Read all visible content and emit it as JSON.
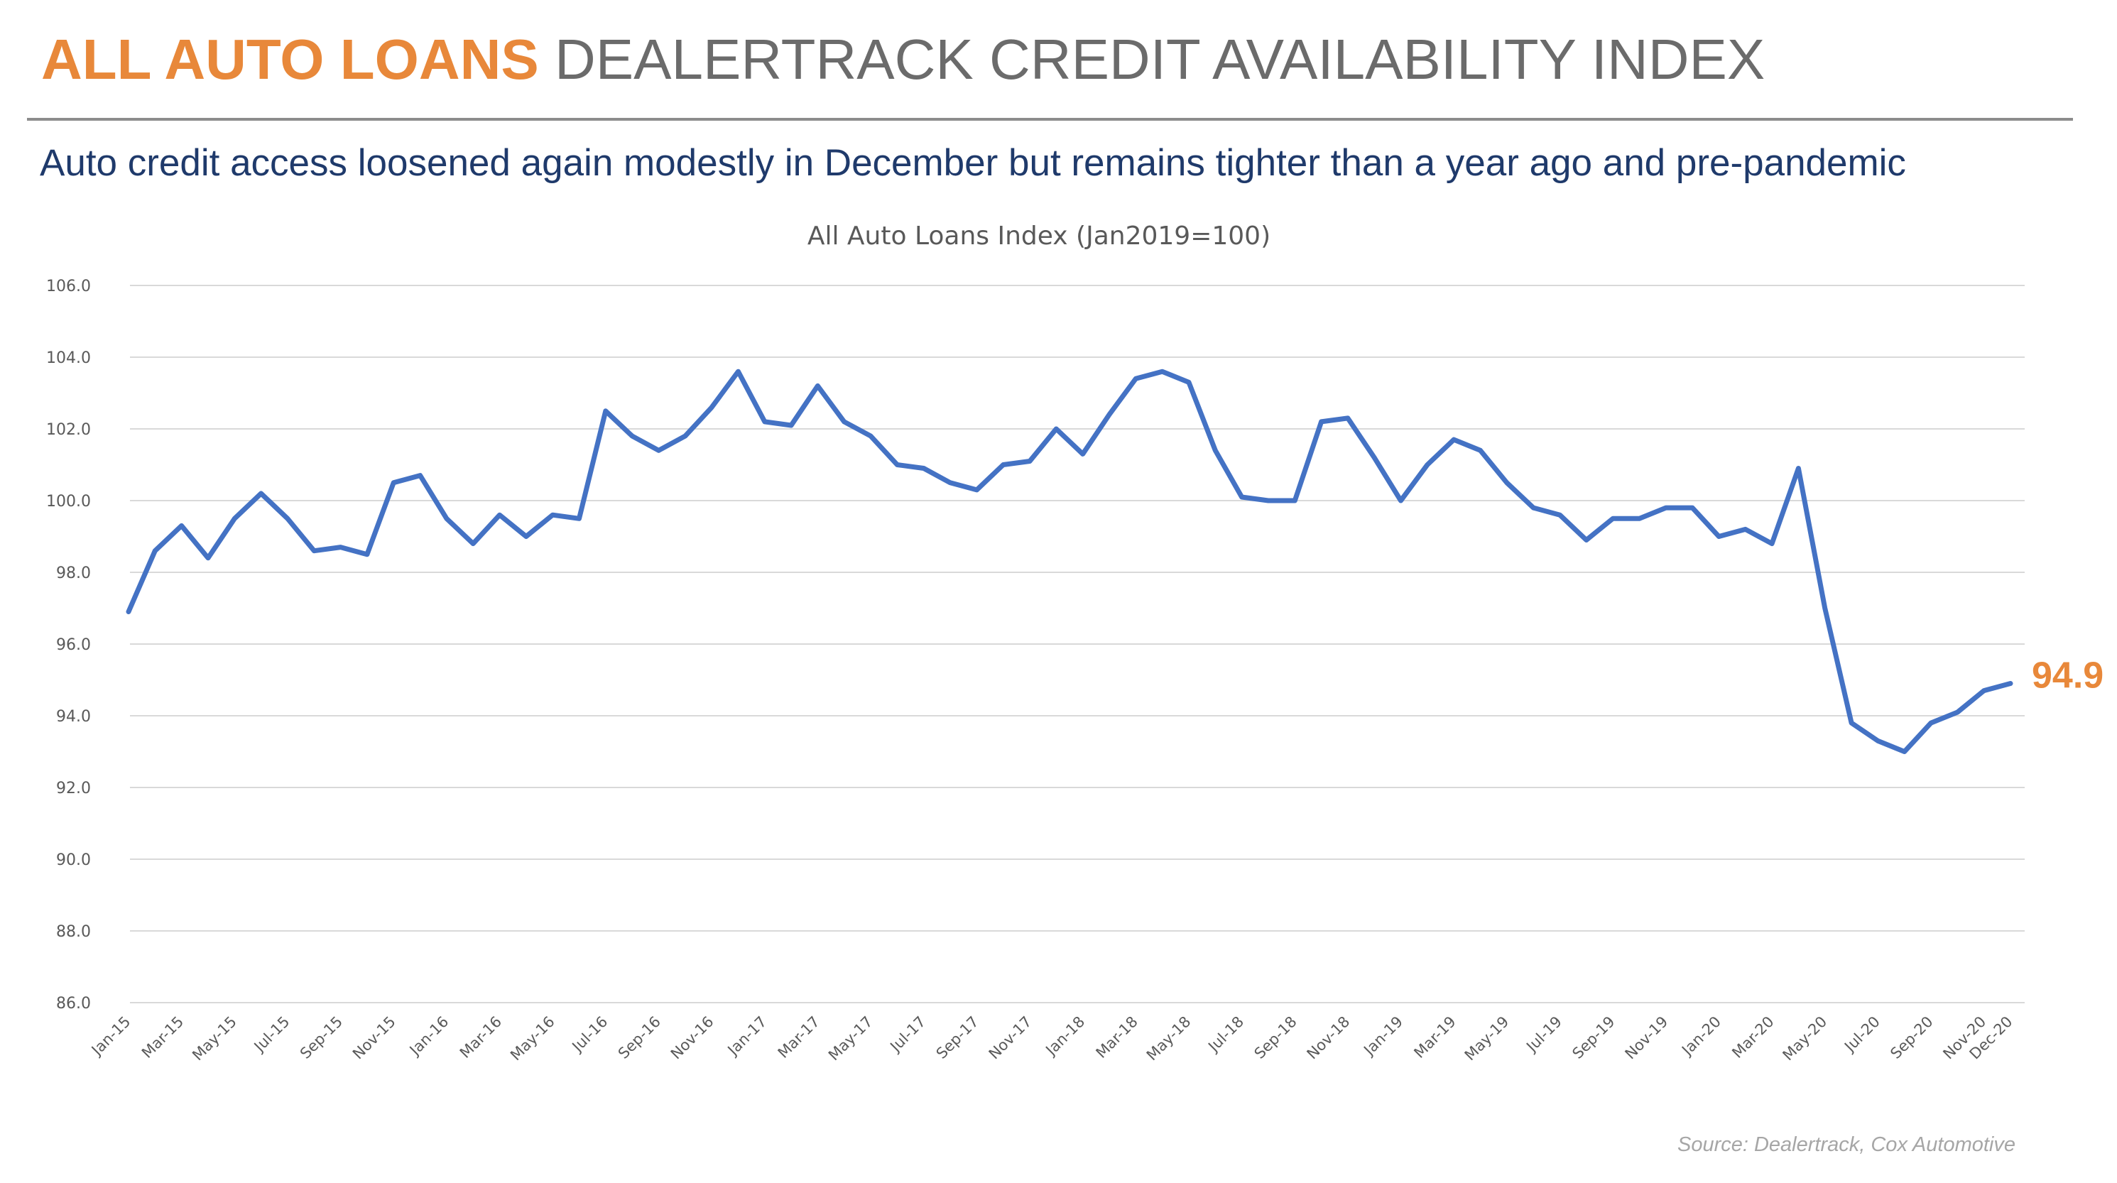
{
  "header": {
    "title_accent": "ALL AUTO LOANS",
    "title_rest": "DEALERTRACK CREDIT AVAILABILITY INDEX",
    "subtitle": "Auto credit access loosened again modestly in December but remains tighter than a year ago and pre-pandemic"
  },
  "footer": {
    "source": "Source: Dealertrack, Cox Automotive"
  },
  "colors": {
    "accent": "#E8883A",
    "title_gray": "#6B6B6B",
    "subtitle_navy": "#1F3A6B",
    "line": "#4472C4",
    "grid": "#D9D9D9",
    "rule": "#8C8C8C",
    "axis_text": "#595959",
    "source_gray": "#A6A6A6"
  },
  "chart_data": {
    "type": "line",
    "title": "All Auto Loans Index (Jan2019=100)",
    "xlabel": "",
    "ylabel": "",
    "ylim": [
      86,
      106
    ],
    "ytick_step": 2,
    "ytick_labels": [
      "86.0",
      "88.0",
      "90.0",
      "92.0",
      "94.0",
      "96.0",
      "98.0",
      "100.0",
      "102.0",
      "104.0",
      "106.0"
    ],
    "grid": true,
    "legend": "none",
    "x": [
      "Jan-15",
      "Feb-15",
      "Mar-15",
      "Apr-15",
      "May-15",
      "Jun-15",
      "Jul-15",
      "Aug-15",
      "Sep-15",
      "Oct-15",
      "Nov-15",
      "Dec-15",
      "Jan-16",
      "Feb-16",
      "Mar-16",
      "Apr-16",
      "May-16",
      "Jun-16",
      "Jul-16",
      "Aug-16",
      "Sep-16",
      "Oct-16",
      "Nov-16",
      "Dec-16",
      "Jan-17",
      "Feb-17",
      "Mar-17",
      "Apr-17",
      "May-17",
      "Jun-17",
      "Jul-17",
      "Aug-17",
      "Sep-17",
      "Oct-17",
      "Nov-17",
      "Dec-17",
      "Jan-18",
      "Feb-18",
      "Mar-18",
      "Apr-18",
      "May-18",
      "Jun-18",
      "Jul-18",
      "Aug-18",
      "Sep-18",
      "Oct-18",
      "Nov-18",
      "Dec-18",
      "Jan-19",
      "Feb-19",
      "Mar-19",
      "Apr-19",
      "May-19",
      "Jun-19",
      "Jul-19",
      "Aug-19",
      "Sep-19",
      "Oct-19",
      "Nov-19",
      "Dec-19",
      "Jan-20",
      "Feb-20",
      "Mar-20",
      "Apr-20",
      "May-20",
      "Jun-20",
      "Jul-20",
      "Aug-20",
      "Sep-20",
      "Oct-20",
      "Nov-20",
      "Dec-20"
    ],
    "xtick_labels": [
      "Jan-15",
      "Mar-15",
      "May-15",
      "Jul-15",
      "Sep-15",
      "Nov-15",
      "Jan-16",
      "Mar-16",
      "May-16",
      "Jul-16",
      "Sep-16",
      "Nov-16",
      "Jan-17",
      "Mar-17",
      "May-17",
      "Jul-17",
      "Sep-17",
      "Nov-17",
      "Jan-18",
      "Mar-18",
      "May-18",
      "Jul-18",
      "Sep-18",
      "Nov-18",
      "Jan-19",
      "Mar-19",
      "May-19",
      "Jul-19",
      "Sep-19",
      "Nov-19",
      "Jan-20",
      "Mar-20",
      "May-20",
      "Jul-20",
      "Sep-20",
      "Nov-20",
      "Dec-20"
    ],
    "series": [
      {
        "values": [
          96.9,
          98.6,
          99.3,
          98.4,
          99.5,
          100.2,
          99.5,
          98.6,
          98.7,
          98.5,
          100.5,
          100.7,
          99.5,
          98.8,
          99.6,
          99.0,
          99.6,
          99.5,
          102.5,
          101.8,
          101.4,
          101.8,
          102.6,
          103.6,
          102.2,
          102.1,
          103.2,
          102.2,
          101.8,
          101.0,
          100.9,
          100.5,
          100.3,
          101.0,
          101.1,
          102.0,
          101.3,
          102.4,
          103.4,
          103.6,
          103.3,
          101.4,
          100.1,
          100.0,
          100.0,
          102.2,
          102.3,
          101.2,
          100.0,
          101.0,
          101.7,
          101.4,
          100.5,
          99.8,
          99.6,
          98.9,
          99.5,
          99.5,
          99.8,
          99.8,
          99.0,
          99.2,
          98.8,
          100.9,
          97.0,
          93.8,
          93.3,
          93.0,
          93.8,
          94.1,
          94.7,
          94.9
        ]
      }
    ],
    "end_label": "94.9"
  }
}
